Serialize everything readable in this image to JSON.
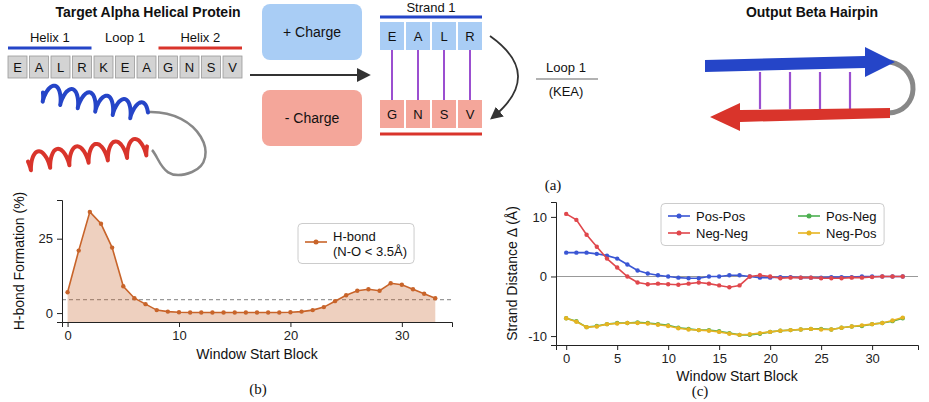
{
  "diagram": {
    "left_title": "Target Alpha Helical Protein",
    "segments": [
      {
        "label": "Helix 1",
        "residues": [
          "E",
          "A",
          "L",
          "R"
        ],
        "color": "#2545c8"
      },
      {
        "label": "Loop 1",
        "residues": [
          "K",
          "E",
          "A"
        ]
      },
      {
        "label": "Helix 2",
        "residues": [
          "G",
          "N",
          "S",
          "V"
        ],
        "color": "#d9342b"
      }
    ],
    "charge_boxes": [
      "+ Charge",
      "- Charge"
    ],
    "strand_label": "Strand 1",
    "strand_1": [
      "E",
      "A",
      "L",
      "R"
    ],
    "strand_2": [
      "G",
      "N",
      "S",
      "V"
    ],
    "loop_label": "Loop 1",
    "loop_residues": "(KEA)",
    "right_title": "Output Beta Hairpin",
    "panel_label": "(a)"
  },
  "chart_data": [
    {
      "type": "area",
      "panel_label": "(b)",
      "x_label": "Window Start Block",
      "y_label": "H-bond Formation (%)",
      "x": [
        0,
        1,
        2,
        3,
        4,
        5,
        6,
        7,
        8,
        9,
        10,
        11,
        12,
        13,
        14,
        15,
        16,
        17,
        18,
        19,
        20,
        21,
        22,
        23,
        24,
        25,
        26,
        27,
        28,
        29,
        30,
        31,
        32,
        33
      ],
      "series": [
        {
          "name": "H-bond (N-O < 3.5Å)",
          "color": "#c8642a",
          "values": [
            7,
            21,
            34,
            30,
            22,
            9,
            5,
            3,
            1,
            0.5,
            0.3,
            0.2,
            0.2,
            0.2,
            0.2,
            0.2,
            0.2,
            0.2,
            0.2,
            0.2,
            0.3,
            0.5,
            1,
            2,
            4,
            6,
            7.5,
            8,
            7.5,
            10,
            9.5,
            8,
            6.5,
            5
          ]
        }
      ],
      "xlim": [
        -0.5,
        34.5
      ],
      "xticks": [
        0,
        10,
        20,
        30
      ],
      "ylim": [
        -3,
        38
      ],
      "yticks": [
        0,
        25
      ],
      "marker": "circle",
      "legend": "right",
      "threshold": {
        "value": 4.5,
        "line_style": "dashed"
      }
    },
    {
      "type": "line",
      "panel_label": "(c)",
      "x_label": "Window Start Block",
      "y_label": "Strand Distance Δ (Å)",
      "x": [
        0,
        1,
        2,
        3,
        4,
        5,
        6,
        7,
        8,
        9,
        10,
        11,
        12,
        13,
        14,
        15,
        16,
        17,
        18,
        19,
        20,
        21,
        22,
        23,
        24,
        25,
        26,
        27,
        28,
        29,
        30,
        31,
        32,
        33
      ],
      "series": [
        {
          "name": "Pos-Pos",
          "color": "#3a56d4",
          "values": [
            4,
            4,
            4,
            3.8,
            3.5,
            3,
            2,
            1,
            0.5,
            0.2,
            0,
            -0.2,
            -0.3,
            -0.3,
            0,
            0,
            0.2,
            0.2,
            0,
            -0.2,
            -0.2,
            -0.1,
            -0.1,
            -0.2,
            -0.2,
            -0.2,
            -0.1,
            -0.1,
            -0.1,
            0,
            0,
            0,
            0,
            0
          ]
        },
        {
          "name": "Neg-Neg",
          "color": "#e0474c",
          "values": [
            10.5,
            9.5,
            7,
            5,
            3,
            1.5,
            0,
            -1,
            -1.3,
            -1.2,
            -1.3,
            -1.4,
            -1.2,
            -1,
            -1.2,
            -1.5,
            -1.8,
            -1.5,
            0,
            0.2,
            0,
            -0.3,
            -0.2,
            -0.2,
            -0.2,
            -0.3,
            -0.3,
            -0.3,
            -0.2,
            -0.2,
            -0.1,
            0,
            0,
            0
          ]
        },
        {
          "name": "Pos-Neg",
          "color": "#4caf50",
          "values": [
            -7,
            -7.5,
            -8.5,
            -8.3,
            -8,
            -7.8,
            -7.8,
            -7.7,
            -7.8,
            -8,
            -8.2,
            -8.6,
            -8.8,
            -9,
            -9,
            -9.2,
            -9.5,
            -9.8,
            -9.8,
            -9.6,
            -9.3,
            -9.1,
            -9,
            -8.9,
            -8.8,
            -8.8,
            -8.9,
            -8.6,
            -8.4,
            -8.3,
            -8,
            -7.8,
            -7.5,
            -7
          ]
        },
        {
          "name": "Neg-Pos",
          "color": "#e6b422",
          "values": [
            -7,
            -7.6,
            -8.5,
            -8.4,
            -8,
            -7.9,
            -7.8,
            -7.8,
            -7.9,
            -8.1,
            -8.3,
            -8.7,
            -8.9,
            -9,
            -9.1,
            -9.3,
            -9.6,
            -9.8,
            -9.7,
            -9.5,
            -9.3,
            -9.1,
            -9,
            -8.9,
            -8.8,
            -8.9,
            -8.9,
            -8.6,
            -8.4,
            -8.2,
            -8,
            -7.8,
            -7.4,
            -6.9
          ]
        }
      ],
      "xlim": [
        -1,
        34.5
      ],
      "xticks": [
        0,
        5,
        10,
        15,
        20,
        25,
        30
      ],
      "ylim": [
        -11.5,
        12.5
      ],
      "yticks": [
        -10,
        0,
        10
      ],
      "marker": "circle",
      "legend": "upper right",
      "threshold": {
        "value": 0,
        "line_style": "solid"
      }
    }
  ]
}
